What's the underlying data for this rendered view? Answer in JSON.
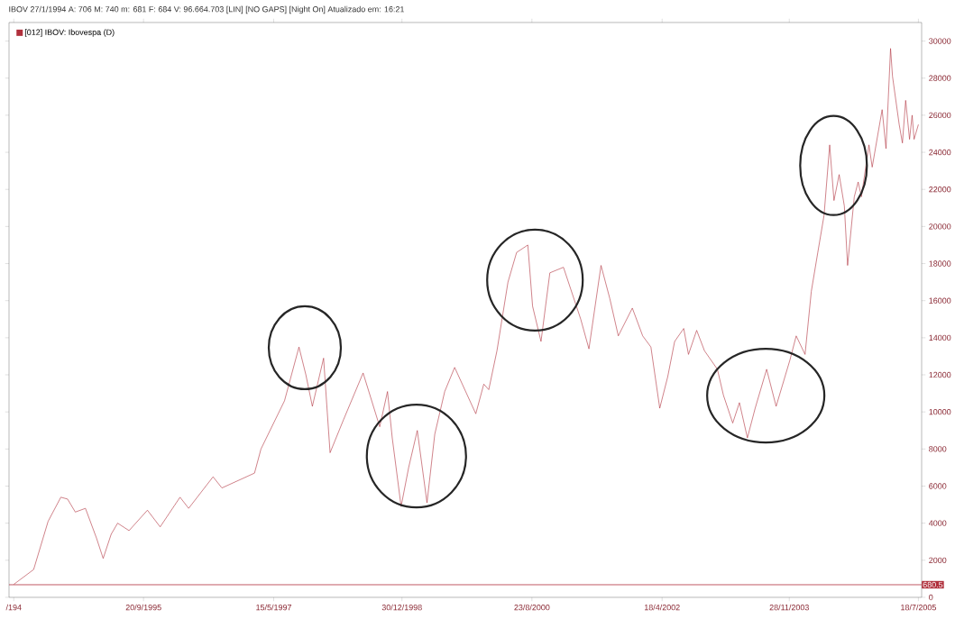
{
  "chart_data": {
    "type": "line",
    "title": "IBOV  27/1/1994  A: 706  M: 740  m: 681  F: 684  V: 96.664.703  [LIN] [NO GAPS] [Night On] Atualizado em: 16:21",
    "x": [
      "1994-01-27",
      "1994-04-29",
      "1994-07-05",
      "1994-09-02",
      "1994-10-03",
      "1994-11-08",
      "1994-12-25",
      "1995-02-14",
      "1995-03-17",
      "1995-04-23",
      "1995-05-23",
      "1995-07-15",
      "1995-10-08",
      "1995-12-06",
      "1996-03-07",
      "1996-04-16",
      "1996-08-07",
      "1996-09-17",
      "1997-02-15",
      "1997-03-17",
      "1997-07-04",
      "1997-09-09",
      "1997-10-11",
      "1997-11-10",
      "1998-01-01",
      "1998-01-18",
      "1998-01-31",
      "1998-04-04",
      "1998-07-03",
      "1998-09-18",
      "1998-10-24",
      "1998-11-15",
      "1998-12-26",
      "1999-01-30",
      "1999-03-11",
      "1999-04-25",
      "1999-05-31",
      "1999-07-16",
      "1999-08-31",
      "1999-12-07",
      "2000-01-13",
      "2000-02-05",
      "2000-03-14",
      "2000-05-04",
      "2000-06-13",
      "2000-08-04",
      "2000-08-26",
      "2000-10-04",
      "2000-11-14",
      "2001-01-16",
      "2001-04-06",
      "2001-05-14",
      "2001-07-09",
      "2001-08-19",
      "2001-09-27",
      "2001-12-01",
      "2002-01-18",
      "2002-02-25",
      "2002-04-07",
      "2002-05-14",
      "2002-06-15",
      "2002-07-27",
      "2002-08-18",
      "2002-09-25",
      "2002-10-31",
      "2002-12-30",
      "2003-01-27",
      "2003-03-11",
      "2003-04-11",
      "2003-05-18",
      "2003-06-23",
      "2003-08-15",
      "2003-09-28",
      "2003-12-01",
      "2003-12-30",
      "2004-02-09",
      "2004-03-09",
      "2004-04-08",
      "2004-05-07",
      "2004-06-02",
      "2004-06-22",
      "2004-07-16",
      "2004-08-09",
      "2004-08-24",
      "2004-09-24",
      "2004-10-12",
      "2004-10-27",
      "2004-12-01",
      "2004-12-16",
      "2005-01-31",
      "2005-02-18",
      "2005-03-11",
      "2005-03-20",
      "2005-04-20",
      "2005-05-05",
      "2005-05-20",
      "2005-06-07",
      "2005-06-19",
      "2005-06-28",
      "2005-07-18"
    ],
    "series": [
      {
        "name": "[012] IBOV: Ibovespa (D)",
        "color": "#b0303c",
        "values": [
          700,
          1500,
          4100,
          5400,
          5300,
          4600,
          4800,
          3200,
          2100,
          3400,
          4000,
          3600,
          4700,
          3800,
          5400,
          4800,
          6500,
          5900,
          6700,
          8000,
          10600,
          13500,
          12000,
          10300,
          12900,
          10000,
          7800,
          9600,
          12100,
          9200,
          11100,
          8600,
          4900,
          7000,
          9000,
          5100,
          8800,
          11100,
          12400,
          9900,
          11500,
          11200,
          13300,
          17000,
          18600,
          19000,
          15700,
          13800,
          17500,
          17800,
          15000,
          13400,
          17900,
          16100,
          14100,
          15600,
          14100,
          13500,
          10200,
          11900,
          13800,
          14500,
          13100,
          14400,
          13300,
          12300,
          10900,
          9400,
          10500,
          8600,
          10200,
          12300,
          10300,
          12800,
          14100,
          13100,
          16500,
          18600,
          20600,
          24400,
          21400,
          22800,
          21100,
          17900,
          21600,
          22400,
          21600,
          24400,
          23200,
          26300,
          24200,
          29600,
          28100,
          25500,
          24500,
          26800,
          24700,
          26000,
          24700,
          25500
        ]
      }
    ],
    "xlim": [
      "1994-01-05",
      "2005-08-02"
    ],
    "xticks": [
      {
        "value": "1994-01-27",
        "label": "/194"
      },
      {
        "value": "1995-09-20",
        "label": "20/9/1995"
      },
      {
        "value": "1997-05-15",
        "label": "15/5/1997"
      },
      {
        "value": "1998-12-30",
        "label": "30/12/1998"
      },
      {
        "value": "2000-08-23",
        "label": "23/8/2000"
      },
      {
        "value": "2002-04-18",
        "label": "18/4/2002"
      },
      {
        "value": "2003-11-28",
        "label": "28/11/2003"
      },
      {
        "value": "2005-07-18",
        "label": "18/7/2005"
      }
    ],
    "ylim": [
      0,
      31000
    ],
    "yticks": [
      0,
      2000,
      4000,
      6000,
      8000,
      10000,
      12000,
      14000,
      16000,
      18000,
      20000,
      22000,
      24000,
      26000,
      28000,
      30000
    ],
    "ref_lines": [
      {
        "axis": "y",
        "value": 680.5,
        "label": "680.5",
        "color": "#b0303c"
      }
    ],
    "legend": "top left",
    "marker": "none",
    "line_style": "solid"
  }
}
